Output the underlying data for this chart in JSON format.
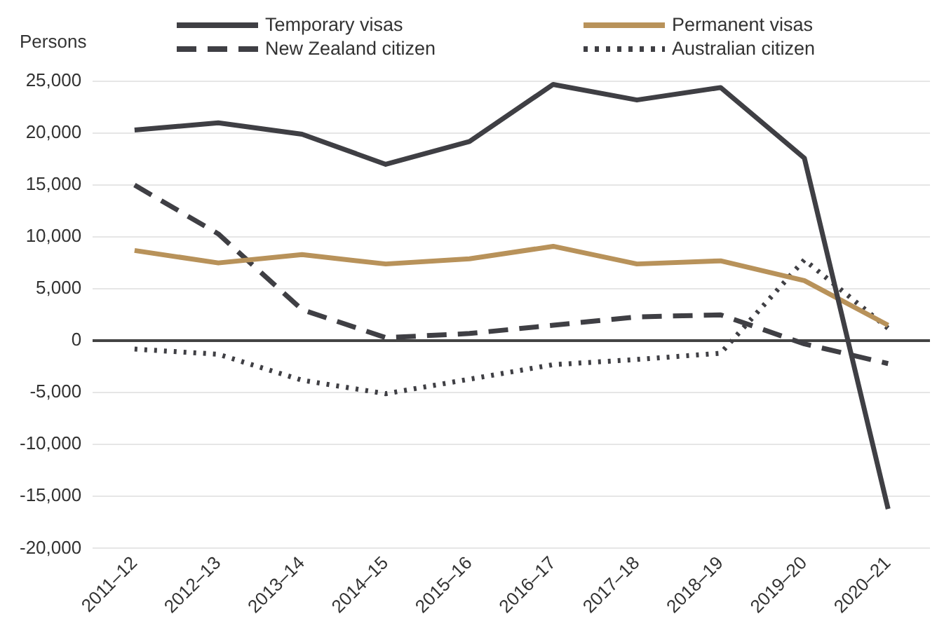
{
  "chart_data": {
    "type": "line",
    "ylabel": "Persons",
    "categories": [
      "2011–12",
      "2012–13",
      "2013–14",
      "2014–15",
      "2015–16",
      "2016–17",
      "2017–18",
      "2018–19",
      "2019–20",
      "2020–21"
    ],
    "series": [
      {
        "name": "Temporary visas",
        "color": "#3f3f44",
        "line_style": "solid",
        "values": [
          20300,
          21000,
          19900,
          17000,
          19200,
          24700,
          23200,
          24400,
          17600,
          -16200
        ]
      },
      {
        "name": "Permanent visas",
        "color": "#b8925a",
        "line_style": "solid",
        "values": [
          8700,
          7500,
          8300,
          7400,
          7900,
          9100,
          7400,
          7700,
          5800,
          1500
        ]
      },
      {
        "name": "New Zealand citizen",
        "color": "#3f3f44",
        "line_style": "dashed",
        "values": [
          15000,
          10300,
          3000,
          300,
          700,
          1500,
          2300,
          2500,
          -300,
          -2200
        ]
      },
      {
        "name": "Australian citizen",
        "color": "#3f3f44",
        "line_style": "dotted",
        "values": [
          -800,
          -1300,
          -3800,
          -5100,
          -3700,
          -2300,
          -1800,
          -1200,
          7800,
          1200
        ]
      }
    ],
    "ylim": [
      -20000,
      25000
    ],
    "yticks": [
      {
        "value": -20000,
        "label": "-20,000"
      },
      {
        "value": -15000,
        "label": "-15,000"
      },
      {
        "value": -10000,
        "label": "-10,000"
      },
      {
        "value": -5000,
        "label": "-5,000"
      },
      0,
      {
        "value": 5000,
        "label": "5,000"
      },
      {
        "value": 10000,
        "label": "10,000"
      },
      {
        "value": 15000,
        "label": "15,000"
      },
      {
        "value": 20000,
        "label": "20,000"
      },
      {
        "value": 25000,
        "label": "25,000"
      }
    ],
    "grid": "y",
    "legend": "top",
    "marker": "none"
  }
}
